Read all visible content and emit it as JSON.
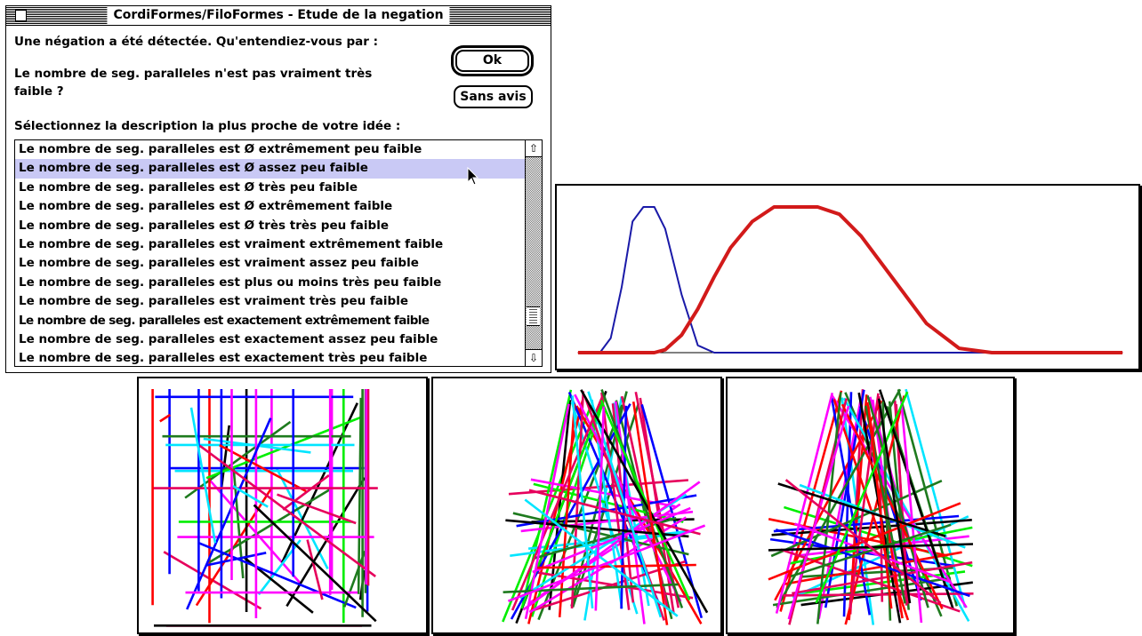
{
  "window": {
    "title": "CordiFormes/FiloFormes - Etude de la negation",
    "message": "Une négation a été détectée. Qu'entendiez-vous par :",
    "question_line1": "Le nombre de seg. paralleles n'est pas vraiment très",
    "question_line2": "faible ?",
    "instruction": "Sélectionnez la description la plus proche de votre idée :",
    "ok_label": "Ok",
    "no_opinion_label": "Sans avis",
    "list_items": [
      "Le nombre de seg. paralleles est Ø extrêmement peu faible",
      "Le nombre de seg. paralleles est Ø assez peu faible",
      "Le nombre de seg. paralleles est Ø très peu faible",
      "Le nombre de seg. paralleles est Ø extrêmement faible",
      "Le nombre de seg. paralleles est Ø très très peu faible",
      "Le nombre de seg. paralleles est vraiment extrêmement faible",
      "Le nombre de seg. paralleles est vraiment assez peu faible",
      "Le nombre de seg. paralleles est plus ou moins très peu faible",
      "Le nombre de seg. paralleles est vraiment très peu faible",
      "Le nombre de seg. paralleles est exactement extrêmement faible",
      "Le nombre de seg. paralleles est exactement assez peu faible",
      "Le nombre de seg. paralleles est exactement très peu faible"
    ],
    "selected_index": 1
  },
  "icons": {
    "scroll_up": "up-arrow-icon",
    "scroll_down": "down-arrow-icon",
    "pointer": "arrow-cursor-icon"
  },
  "colors": {
    "selection": "#c9c9f5",
    "curve_narrow": "#1a1aa8",
    "curve_wide": "#d21a1a",
    "line_palette": [
      "#ff0000",
      "#0000ff",
      "#000000",
      "#00ee00",
      "#00e5ff",
      "#ff00ff",
      "#e6005c",
      "#1e7a1e"
    ]
  },
  "chart_data": {
    "type": "line",
    "title": "",
    "xlabel": "",
    "ylabel": "",
    "x": [
      0,
      4,
      6,
      8,
      10,
      12,
      14,
      16,
      19,
      22,
      25,
      28,
      32,
      36,
      40,
      44,
      48,
      52,
      58,
      64,
      70,
      76,
      80,
      84,
      88,
      92,
      96,
      100
    ],
    "ylim": [
      0,
      1
    ],
    "series": [
      {
        "values": [
          0,
          0,
          0.1,
          0.45,
          0.9,
          1,
          1,
          0.85,
          0.4,
          0.05,
          0,
          0,
          0,
          0,
          0,
          0,
          0,
          0,
          0,
          0,
          0,
          0,
          0,
          0,
          0,
          0,
          0,
          0
        ]
      },
      {
        "values": [
          0,
          0,
          0,
          0,
          0,
          0,
          0,
          0.02,
          0.12,
          0.3,
          0.52,
          0.72,
          0.9,
          1,
          1,
          1,
          0.95,
          0.8,
          0.5,
          0.2,
          0.03,
          0,
          0,
          0,
          0,
          0,
          0,
          0
        ]
      }
    ]
  }
}
